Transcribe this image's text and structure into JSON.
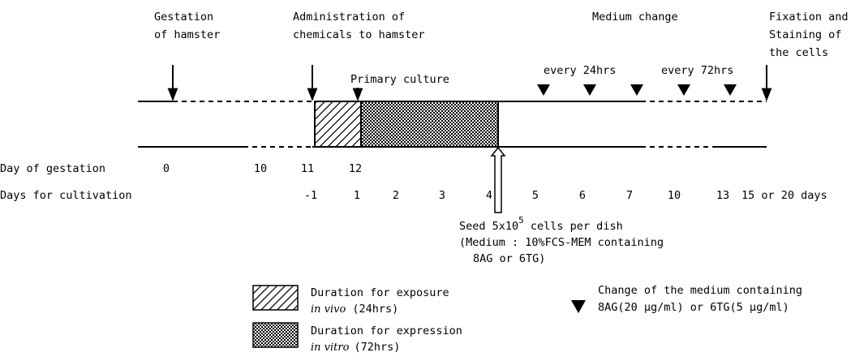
{
  "events": {
    "gestation": [
      "Gestation",
      "of hamster"
    ],
    "administration": [
      "Administration of",
      "chemicals to hamster"
    ],
    "primary_culture": "Primary culture",
    "medium_change": "Medium change",
    "every_24": "every 24hrs",
    "every_72": "every 72hrs",
    "fixation": [
      "Fixation and",
      "Staining of",
      "the cells"
    ]
  },
  "gestation_axis": {
    "label": "Day of gestation",
    "ticks": [
      "0",
      "10",
      "11",
      "12"
    ]
  },
  "cultivation_axis": {
    "label": "Days for cultivation",
    "ticks": [
      "-1",
      "1",
      "2",
      "3",
      "4",
      "5",
      "6",
      "7",
      "10",
      "13",
      "15 or 20 days"
    ]
  },
  "seed": {
    "text": "Seed 5x10",
    "exponent": "5",
    "rest": " cells per dish",
    "lines": [
      "(Medium : 10%FCS-MEM containing",
      "8AG or 6TG)"
    ]
  },
  "legend": {
    "exposure": {
      "title": "Duration for exposure",
      "italic": "in vivo",
      "note": "(24hrs)"
    },
    "expression": {
      "title": "Duration for expression",
      "italic": "in vitro",
      "note": "(72hrs)"
    },
    "medium": [
      "Change of the medium containing",
      "8AG(20 µg/ml) or 6TG(5 µg/ml)"
    ]
  }
}
